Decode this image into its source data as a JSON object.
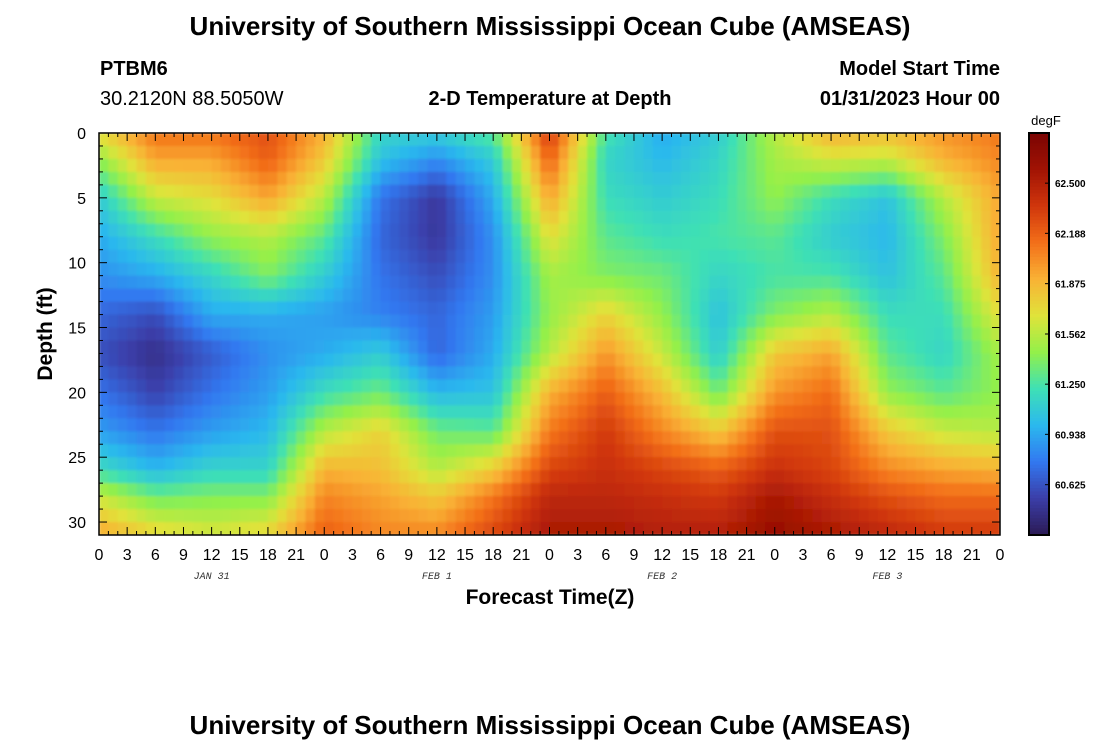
{
  "page": {
    "title": "University of Southern Mississippi Ocean Cube (AMSEAS)",
    "footer_title": "University of Southern Mississippi Ocean Cube (AMSEAS)",
    "station": "PTBM6",
    "location": "30.2120N  88.5050W",
    "subtitle": "2-D Temperature at Depth",
    "start_label": "Model Start Time",
    "start_value": "01/31/2023 Hour 00"
  },
  "chart_data": {
    "type": "heatmap",
    "title": "2-D Temperature at Depth",
    "xlabel": "Forecast Time(Z)",
    "ylabel": "Depth (ft)",
    "x_range_hours": [
      0,
      96
    ],
    "y_range_ft": [
      0,
      31
    ],
    "y_inverted": true,
    "x_ticks": [
      "0",
      "3",
      "6",
      "9",
      "12",
      "15",
      "18",
      "21",
      "0",
      "3",
      "6",
      "9",
      "12",
      "15",
      "18",
      "21",
      "0",
      "3",
      "6",
      "9",
      "12",
      "15",
      "18",
      "21",
      "0",
      "3",
      "6",
      "9",
      "12",
      "15",
      "18",
      "21",
      "0"
    ],
    "y_ticks": [
      "0",
      "5",
      "10",
      "15",
      "20",
      "25",
      "30"
    ],
    "date_labels": [
      {
        "label": "JAN 31",
        "hour": 12
      },
      {
        "label": "FEB 1",
        "hour": 36
      },
      {
        "label": "FEB 2",
        "hour": 60
      },
      {
        "label": "FEB 3",
        "hour": 84
      }
    ],
    "colorbar": {
      "units": "degF",
      "range": [
        60.312,
        62.812
      ],
      "ticks": [
        "62.500",
        "62.188",
        "61.875",
        "61.562",
        "61.250",
        "60.938",
        "60.625"
      ],
      "colors": [
        "#2b1a55",
        "#3b3ea8",
        "#3278f0",
        "#2bb8ee",
        "#3ee0b5",
        "#93f04a",
        "#e0e33a",
        "#f9b235",
        "#f36f19",
        "#d0360c",
        "#a11304",
        "#7a0403"
      ]
    },
    "depths_ft": [
      0,
      2,
      5,
      8,
      11,
      14,
      17,
      20,
      23,
      26,
      28,
      31
    ],
    "hours": [
      0,
      6,
      12,
      18,
      24,
      30,
      36,
      42,
      48,
      54,
      60,
      66,
      72,
      78,
      84,
      90,
      96
    ],
    "temperature_degF": [
      [
        61.72,
        62.12,
        62.12,
        62.25,
        61.9,
        61.15,
        61.1,
        61.3,
        62.35,
        61.25,
        60.95,
        61.1,
        61.55,
        61.9,
        61.85,
        62.0,
        62.1
      ],
      [
        61.45,
        61.95,
        61.95,
        62.2,
        61.8,
        61.05,
        60.85,
        61.1,
        62.2,
        61.15,
        61.0,
        61.15,
        61.5,
        61.65,
        61.6,
        61.9,
        62.05
      ],
      [
        61.1,
        61.6,
        61.7,
        61.95,
        61.55,
        60.75,
        60.5,
        60.95,
        61.95,
        61.2,
        61.1,
        61.2,
        61.45,
        61.2,
        61.05,
        61.55,
        61.95
      ],
      [
        60.95,
        61.2,
        61.45,
        61.55,
        61.3,
        60.7,
        60.5,
        60.85,
        61.7,
        61.3,
        61.2,
        61.25,
        61.3,
        61.1,
        61.0,
        61.4,
        61.95
      ],
      [
        60.85,
        60.95,
        61.15,
        61.4,
        61.1,
        60.75,
        60.6,
        60.85,
        61.5,
        61.4,
        61.35,
        61.15,
        61.25,
        61.25,
        61.05,
        61.3,
        61.9
      ],
      [
        60.7,
        60.6,
        60.95,
        60.95,
        60.9,
        60.8,
        60.7,
        60.9,
        61.45,
        61.75,
        61.45,
        61.05,
        61.4,
        61.55,
        61.2,
        61.2,
        61.7
      ],
      [
        60.6,
        60.45,
        60.65,
        60.85,
        60.95,
        61.1,
        60.7,
        60.95,
        61.55,
        62.0,
        61.6,
        61.1,
        61.8,
        61.95,
        61.3,
        61.15,
        61.5
      ],
      [
        60.75,
        60.55,
        60.75,
        60.9,
        61.2,
        61.35,
        61.0,
        61.05,
        61.9,
        62.2,
        61.85,
        61.35,
        62.0,
        62.15,
        61.45,
        61.3,
        61.45
      ],
      [
        60.9,
        60.75,
        60.9,
        61.0,
        61.55,
        61.75,
        61.35,
        61.3,
        62.1,
        62.35,
        62.05,
        61.8,
        62.25,
        62.25,
        61.8,
        61.6,
        61.55
      ],
      [
        61.2,
        61.0,
        61.15,
        61.15,
        61.9,
        61.85,
        61.55,
        61.8,
        62.3,
        62.4,
        62.3,
        62.2,
        62.4,
        62.3,
        62.05,
        61.95,
        61.9
      ],
      [
        61.6,
        61.35,
        61.4,
        61.4,
        62.05,
        61.95,
        61.8,
        62.1,
        62.45,
        62.45,
        62.4,
        62.35,
        62.55,
        62.4,
        62.25,
        62.15,
        62.15
      ],
      [
        61.95,
        61.75,
        61.65,
        61.75,
        62.2,
        62.05,
        62.05,
        62.3,
        62.55,
        62.55,
        62.5,
        62.5,
        62.65,
        62.55,
        62.45,
        62.35,
        62.35
      ]
    ]
  }
}
